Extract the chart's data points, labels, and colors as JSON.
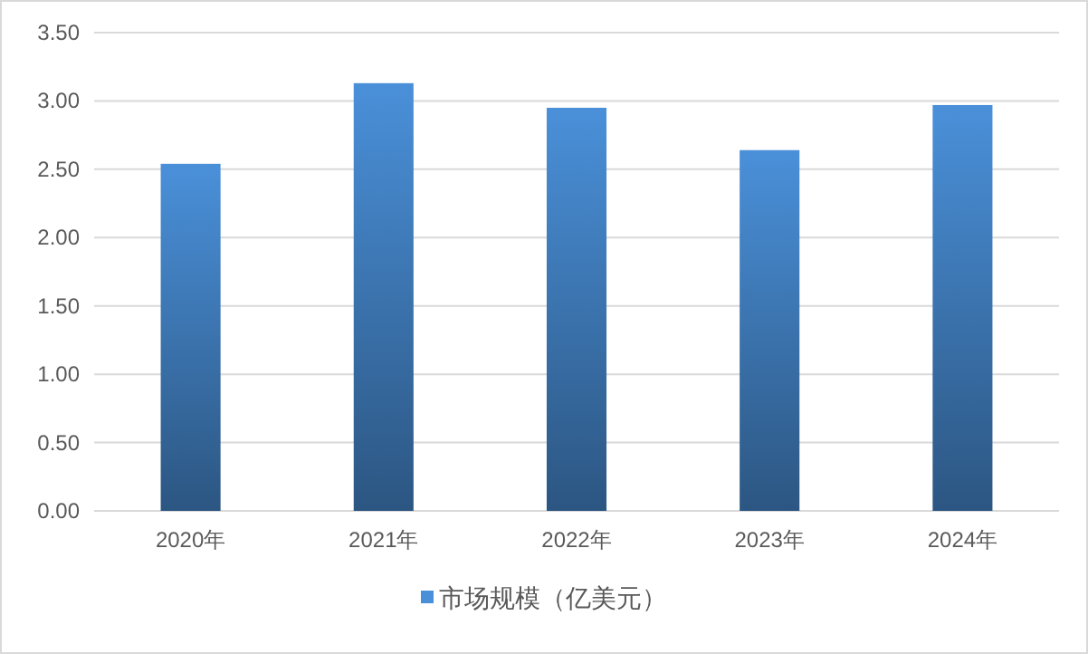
{
  "chart_data": {
    "type": "bar",
    "categories": [
      "2020年",
      "2021年",
      "2022年",
      "2023年",
      "2024年"
    ],
    "series": [
      {
        "name": "市场规模（亿美元）",
        "color": "#4a90d9",
        "values": [
          2.54,
          3.13,
          2.95,
          2.64,
          2.97
        ]
      }
    ],
    "ylim": [
      0,
      3.5
    ],
    "yticks": [
      {
        "value": 0,
        "label": "0.00"
      },
      {
        "value": 0.5,
        "label": "0.50"
      },
      {
        "value": 1,
        "label": "1.00"
      },
      {
        "value": 1.5,
        "label": "1.50"
      },
      {
        "value": 2,
        "label": "2.00"
      },
      {
        "value": 2.5,
        "label": "2.50"
      },
      {
        "value": 3,
        "label": "3.00"
      },
      {
        "value": 3.5,
        "label": "3.50"
      }
    ],
    "grid": "y",
    "legend": "bottom"
  }
}
